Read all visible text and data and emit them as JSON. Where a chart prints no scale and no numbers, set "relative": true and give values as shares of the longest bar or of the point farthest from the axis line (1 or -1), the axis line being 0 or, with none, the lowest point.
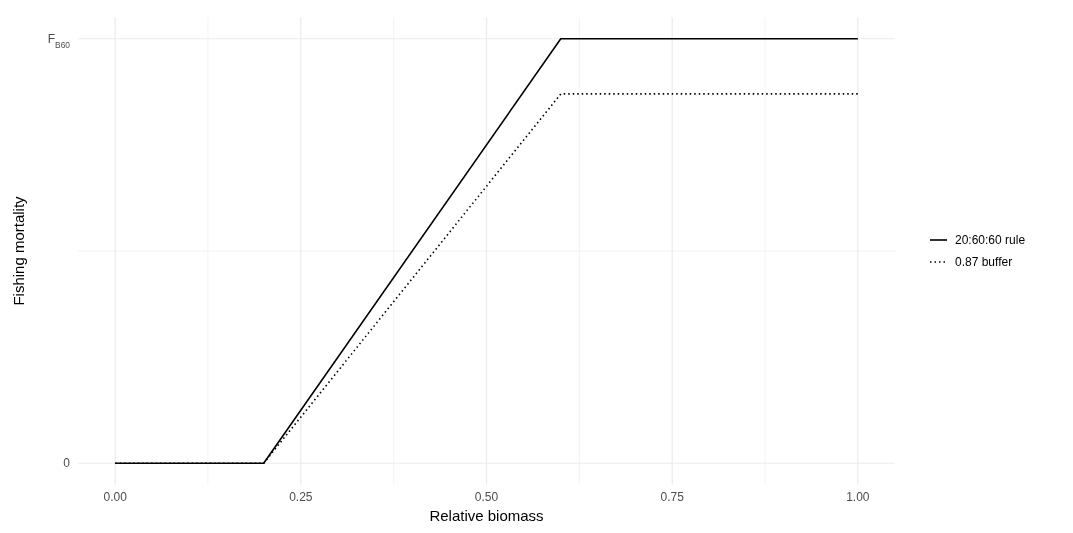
{
  "chart_data": {
    "type": "line",
    "xlabel": "Relative biomass",
    "ylabel": "Fishing mortality",
    "relative": true,
    "xlim": [
      -0.05,
      1.05
    ],
    "xticks": [
      {
        "value": 0,
        "label": "0.00"
      },
      {
        "value": 0.25,
        "label": "0.25"
      },
      {
        "value": 0.5,
        "label": "0.50"
      },
      {
        "value": 0.75,
        "label": "0.75"
      },
      {
        "value": 1,
        "label": "1.00"
      }
    ],
    "annotations": [
      "0",
      "F$_{B60}$"
    ],
    "grid": true,
    "legend": "right",
    "series": [
      {
        "name": "20:60:60 rule",
        "color": "#000000",
        "line_style": "solid",
        "x": [
          0,
          0.2,
          0.6,
          1
        ],
        "values": [
          0,
          0,
          1,
          1
        ]
      },
      {
        "name": "0.87 buffer",
        "color": "#000000",
        "line_style": "dotted",
        "x": [
          0,
          0.2,
          0.6,
          1
        ],
        "values": [
          0,
          0,
          0.87,
          0.87
        ]
      }
    ]
  }
}
